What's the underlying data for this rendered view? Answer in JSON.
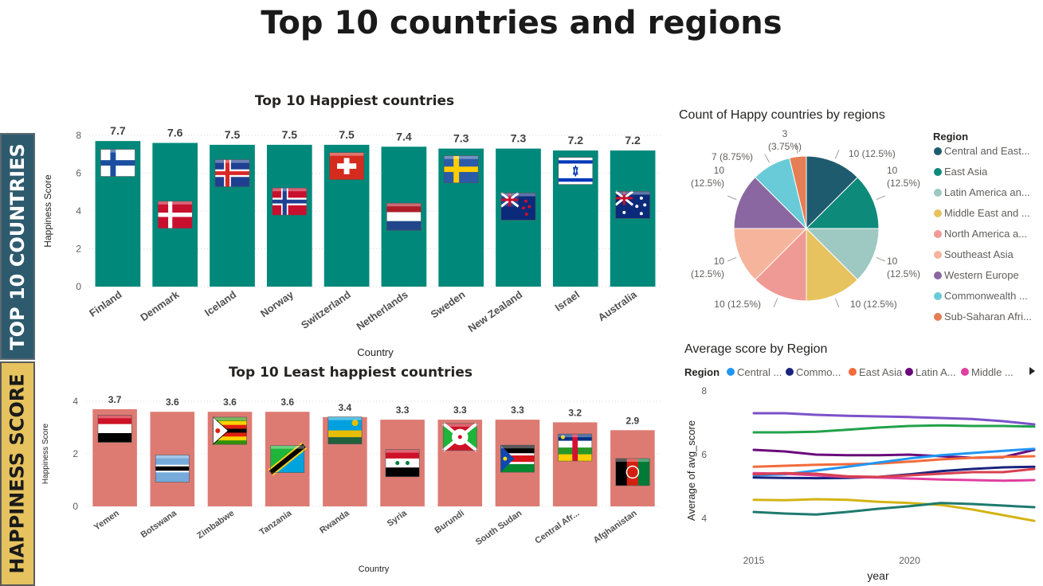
{
  "page": {
    "title": "Top 10 countries and regions"
  },
  "sidebar": {
    "tab1": "TOP 10 COUNTRIES",
    "tab2": "HAPPINESS SCORE"
  },
  "colors": {
    "top_bars": "#00897b",
    "least_bars": "#dd7b73",
    "grid": "#d8d8d8"
  },
  "chart_data": [
    {
      "id": "top10",
      "type": "bar",
      "title": "Top 10 Happiest countries",
      "xlabel": "Country",
      "ylabel": "Happiness Score",
      "ylim": [
        0,
        8
      ],
      "yticks": [
        0,
        2,
        4,
        6,
        8
      ],
      "categories": [
        "Finland",
        "Denmark",
        "Iceland",
        "Norway",
        "Switzerland",
        "Netherlands",
        "Sweden",
        "New Zealand",
        "Israel",
        "Australia"
      ],
      "values": [
        7.7,
        7.6,
        7.5,
        7.5,
        7.5,
        7.4,
        7.3,
        7.3,
        7.2,
        7.2
      ],
      "labels": [
        "7.7",
        "7.6",
        "7.5",
        "7.5",
        "7.5",
        "7.4",
        "7.3",
        "7.3",
        "7.2",
        "7.2"
      ],
      "flags": [
        "finland-flag",
        "denmark-flag",
        "iceland-flag",
        "norway-flag",
        "switzerland-flag",
        "netherlands-flag",
        "sweden-flag",
        "new-zealand-flag",
        "israel-flag",
        "australia-flag"
      ],
      "grid": true
    },
    {
      "id": "least10",
      "type": "bar",
      "title": "Top 10 Least happiest countries",
      "xlabel": "Country",
      "ylabel": "Happiness Score",
      "ylim": [
        0,
        4
      ],
      "yticks": [
        0,
        2,
        4
      ],
      "categories": [
        "Yemen",
        "Botswana",
        "Zimbabwe",
        "Tanzania",
        "Rwanda",
        "Syria",
        "Burundi",
        "South Sudan",
        "Central Afr...",
        "Afghanistan"
      ],
      "values": [
        3.7,
        3.6,
        3.6,
        3.6,
        3.4,
        3.3,
        3.3,
        3.3,
        3.2,
        2.9
      ],
      "labels": [
        "3.7",
        "3.6",
        "3.6",
        "3.6",
        "3.4",
        "3.3",
        "3.3",
        "3.3",
        "3.2",
        "2.9"
      ],
      "flags": [
        "yemen-flag",
        "botswana-flag",
        "zimbabwe-flag",
        "tanzania-flag",
        "rwanda-flag",
        "syria-flag",
        "burundi-flag",
        "south-sudan-flag",
        "central-african-republic-flag",
        "afghanistan-flag"
      ],
      "grid": true
    },
    {
      "id": "regions_pie",
      "type": "pie",
      "title": "Count of Happy countries by regions",
      "legend_title": "Region",
      "legend_position": "right",
      "slices": [
        {
          "name": "Central and East...",
          "value": 10,
          "label": "10 (12.5%)",
          "color": "#1f5b6f"
        },
        {
          "name": "East Asia",
          "value": 10,
          "label": "10 (12.5%)",
          "color": "#0d8a7a"
        },
        {
          "name": "Latin America an...",
          "value": 10,
          "label": "10 (12.5%)",
          "color": "#9ec8c2"
        },
        {
          "name": "Middle East and ...",
          "value": 10,
          "label": "10 (12.5%)",
          "color": "#e6c35f"
        },
        {
          "name": "North America a...",
          "value": 10,
          "label": "10 (12.5%)",
          "color": "#ef9a94"
        },
        {
          "name": "Southeast Asia",
          "value": 10,
          "label": "10 (12.5%)",
          "color": "#f5b49b"
        },
        {
          "name": "Western Europe",
          "value": 10,
          "label": "10 (12.5%)",
          "color": "#8a67a0"
        },
        {
          "name": "Commonwealth ...",
          "value": 7,
          "label": "7 (8.75%)",
          "color": "#6acbd8"
        },
        {
          "name": "Sub-Saharan Afri...",
          "value": 3,
          "label": "3 (3.75%)",
          "color": "#e57e54"
        }
      ]
    },
    {
      "id": "avg_region",
      "type": "line",
      "title": "Average score by Region",
      "legend_title": "Region",
      "legend_position": "top",
      "xlabel": "year",
      "ylabel": "Average of avg_score",
      "ylim": [
        3.5,
        8
      ],
      "yticks": [
        4,
        6,
        8
      ],
      "xticks": [
        2015,
        2020
      ],
      "x": [
        2015,
        2016,
        2017,
        2018,
        2019,
        2020,
        2021,
        2022,
        2023,
        2024
      ],
      "legend_items": [
        {
          "name": "Central ...",
          "color": "#2196f3"
        },
        {
          "name": "Commo...",
          "color": "#1a237e"
        },
        {
          "name": "East Asia",
          "color": "#f26b3a"
        },
        {
          "name": "Latin A...",
          "color": "#6a0a7a"
        },
        {
          "name": "Middle ...",
          "color": "#e040a0"
        }
      ],
      "series": [
        {
          "color": "#7b52c9",
          "values": [
            7.3,
            7.3,
            7.25,
            7.22,
            7.2,
            7.18,
            7.15,
            7.12,
            7.05,
            6.95
          ]
        },
        {
          "color": "#22a24a",
          "values": [
            6.7,
            6.7,
            6.72,
            6.78,
            6.85,
            6.9,
            6.92,
            6.9,
            6.9,
            6.88
          ]
        },
        {
          "name": "Latin A...",
          "color": "#6a0a7a",
          "values": [
            6.15,
            6.1,
            6.0,
            5.98,
            5.98,
            6.0,
            5.95,
            5.9,
            5.92,
            6.15
          ]
        },
        {
          "name": "East Asia",
          "color": "#f26b3a",
          "values": [
            5.62,
            5.65,
            5.68,
            5.7,
            5.72,
            5.78,
            5.85,
            5.9,
            5.93,
            5.95
          ]
        },
        {
          "name": "Central ...",
          "color": "#2196f3",
          "values": [
            5.35,
            5.38,
            5.5,
            5.62,
            5.75,
            5.88,
            5.98,
            6.05,
            6.12,
            6.18
          ]
        },
        {
          "name": "Commo...",
          "color": "#1a237e",
          "values": [
            5.28,
            5.27,
            5.26,
            5.27,
            5.3,
            5.38,
            5.48,
            5.55,
            5.6,
            5.62
          ]
        },
        {
          "name": "Middle ...",
          "color": "#e040a0",
          "values": [
            5.42,
            5.4,
            5.35,
            5.3,
            5.28,
            5.25,
            5.22,
            5.2,
            5.18,
            5.2
          ]
        },
        {
          "color": "#d84050",
          "values": [
            5.38,
            5.42,
            5.4,
            5.32,
            5.3,
            5.35,
            5.4,
            5.45,
            5.45,
            5.55
          ]
        },
        {
          "color": "#d4b414",
          "values": [
            4.58,
            4.57,
            4.6,
            4.58,
            4.52,
            4.48,
            4.42,
            4.28,
            4.1,
            3.92
          ]
        },
        {
          "color": "#1e7a6e",
          "values": [
            4.2,
            4.15,
            4.12,
            4.2,
            4.3,
            4.38,
            4.48,
            4.45,
            4.4,
            4.35
          ]
        }
      ],
      "grid": false
    }
  ]
}
